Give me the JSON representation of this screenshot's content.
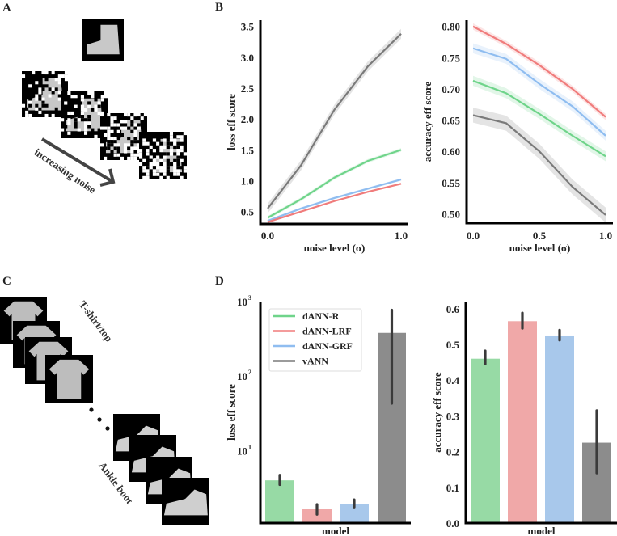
{
  "panels": {
    "a": {
      "letter": "A",
      "arrow_text": "increasing noise"
    },
    "b": {
      "letter": "B"
    },
    "c": {
      "letter": "C",
      "top_label": "T-shirt/top",
      "bottom_label": "Ankle boot"
    },
    "d": {
      "letter": "D"
    }
  },
  "colors": {
    "dANN-R": {
      "line": "#6fd48a",
      "bar": "#97daa5"
    },
    "dANN-LRF": {
      "line": "#f07c7c",
      "bar": "#f0a8a8"
    },
    "dANN-GRF": {
      "line": "#8fbdf0",
      "bar": "#a8c8eb"
    },
    "vANN": {
      "line": "#7a7a7a",
      "bar": "#8c8c8c"
    }
  },
  "chart_data": [
    {
      "id": "b_loss",
      "type": "line",
      "xlabel": "noise level (σ)",
      "ylabel": "loss eff score",
      "xlim": [
        0,
        1
      ],
      "ylim": [
        0.3,
        3.6
      ],
      "xticks": [
        "0.0",
        "1.0"
      ],
      "xtick_values": [
        0,
        1
      ],
      "yticks": [
        "0.5",
        "1.0",
        "1.5",
        "2.0",
        "2.5",
        "3.0",
        "3.5"
      ],
      "ytick_values": [
        0.5,
        1.0,
        1.5,
        2.0,
        2.5,
        3.0,
        3.5
      ],
      "x": [
        0,
        0.25,
        0.5,
        0.75,
        1.0
      ],
      "series": [
        {
          "name": "vANN",
          "values": [
            0.55,
            1.25,
            2.15,
            2.85,
            3.38
          ],
          "ci": 0.08
        },
        {
          "name": "dANN-R",
          "values": [
            0.4,
            0.7,
            1.05,
            1.32,
            1.5
          ],
          "ci": 0.03
        },
        {
          "name": "dANN-GRF",
          "values": [
            0.35,
            0.55,
            0.72,
            0.87,
            1.02
          ],
          "ci": 0.02
        },
        {
          "name": "dANN-LRF",
          "values": [
            0.33,
            0.5,
            0.67,
            0.82,
            0.95
          ],
          "ci": 0.015
        }
      ]
    },
    {
      "id": "b_acc",
      "type": "line",
      "xlabel": "noise level (σ)",
      "ylabel": "accuracy eff score",
      "xlim": [
        0,
        1
      ],
      "ylim": [
        0.485,
        0.81
      ],
      "xticks": [
        "0.0",
        "0.5",
        "1.0"
      ],
      "xtick_values": [
        0,
        0.5,
        1
      ],
      "yticks": [
        "0.50",
        "0.55",
        "0.60",
        "0.65",
        "0.70",
        "0.75",
        "0.80"
      ],
      "ytick_values": [
        0.5,
        0.55,
        0.6,
        0.65,
        0.7,
        0.75,
        0.8
      ],
      "x": [
        0,
        0.25,
        0.5,
        0.75,
        1.0
      ],
      "series": [
        {
          "name": "dANN-LRF",
          "values": [
            0.8,
            0.772,
            0.738,
            0.7,
            0.655
          ],
          "ci": 0.005
        },
        {
          "name": "dANN-GRF",
          "values": [
            0.765,
            0.748,
            0.708,
            0.672,
            0.625
          ],
          "ci": 0.008
        },
        {
          "name": "dANN-R",
          "values": [
            0.713,
            0.693,
            0.66,
            0.625,
            0.592
          ],
          "ci": 0.008
        },
        {
          "name": "vANN",
          "values": [
            0.658,
            0.645,
            0.6,
            0.543,
            0.498
          ],
          "ci": 0.012
        }
      ]
    },
    {
      "id": "d_loss",
      "type": "bar",
      "yscale": "log",
      "xlabel": "model",
      "ylabel": "loss eff score",
      "ylim": [
        1.07,
        1000
      ],
      "yticks": [
        "10",
        "10",
        "10"
      ],
      "ytick_exponents": [
        "1",
        "2",
        "3"
      ],
      "ytick_values": [
        10,
        100,
        1000
      ],
      "categories": [
        "dANN-R",
        "dANN-LRF",
        "dANN-GRF",
        "vANN"
      ],
      "values": [
        4.0,
        1.64,
        1.9,
        380
      ],
      "err_low": [
        3.5,
        1.4,
        1.75,
        43
      ],
      "err_high": [
        4.7,
        1.9,
        2.2,
        770
      ],
      "legend": {
        "placement": "top-left",
        "entries": [
          "dANN-R",
          "dANN-LRF",
          "dANN-GRF",
          "vANN"
        ]
      }
    },
    {
      "id": "d_acc",
      "type": "bar",
      "xlabel": "model",
      "ylabel": "accuracy eff score",
      "ylim": [
        0,
        0.62
      ],
      "yticks": [
        "0.0",
        "0.1",
        "0.2",
        "0.3",
        "0.4",
        "0.5",
        "0.6"
      ],
      "ytick_values": [
        0,
        0.1,
        0.2,
        0.3,
        0.4,
        0.5,
        0.6
      ],
      "categories": [
        "dANN-R",
        "dANN-LRF",
        "dANN-GRF",
        "vANN"
      ],
      "values": [
        0.46,
        0.565,
        0.525,
        0.225
      ],
      "err_low": [
        0.445,
        0.545,
        0.512,
        0.14
      ],
      "err_high": [
        0.482,
        0.588,
        0.54,
        0.315
      ]
    }
  ]
}
